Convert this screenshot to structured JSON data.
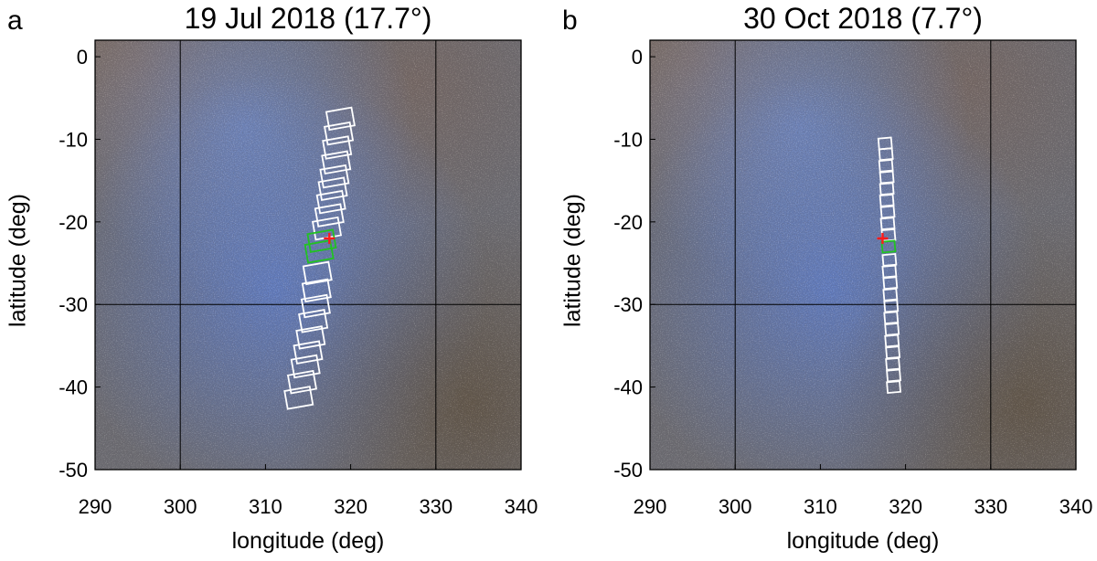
{
  "colors": {
    "footprint": "#ffffff",
    "selected_footprint": "#22c222",
    "target_marker": "#ff1a1a",
    "grid": "#000000"
  },
  "chart_data": [
    {
      "type": "scatter",
      "panel": "a",
      "title": "19 Jul 2018 (17.7°)",
      "xlabel": "longitude (deg)",
      "ylabel": "latitude (deg)",
      "xlim": [
        290,
        340
      ],
      "ylim": [
        -50,
        2
      ],
      "xticks": [
        290,
        300,
        310,
        320,
        330,
        340
      ],
      "yticks": [
        0,
        -10,
        -20,
        -30,
        -40,
        -50
      ],
      "grid_lines": {
        "x": [
          300,
          330
        ],
        "y": [
          -30
        ]
      },
      "target": {
        "lon": 317.5,
        "lat": -22
      },
      "footprint_size": {
        "width_deg": 3,
        "height_deg": 2.2,
        "tilt_deg": -10
      },
      "footprints": [
        {
          "lon": 318.8,
          "lat": -7.5
        },
        {
          "lon": 318.6,
          "lat": -9.3
        },
        {
          "lon": 318.4,
          "lat": -11
        },
        {
          "lon": 318.3,
          "lat": -12.8
        },
        {
          "lon": 318.1,
          "lat": -14.5
        },
        {
          "lon": 317.9,
          "lat": -16
        },
        {
          "lon": 317.7,
          "lat": -17.6
        },
        {
          "lon": 317.5,
          "lat": -19.2
        },
        {
          "lon": 317.2,
          "lat": -20.8
        },
        {
          "lon": 316.6,
          "lat": -22.3,
          "selected": true
        },
        {
          "lon": 316.3,
          "lat": -23.6,
          "selected": true
        },
        {
          "lon": 316.1,
          "lat": -26.2
        },
        {
          "lon": 316,
          "lat": -28.3
        },
        {
          "lon": 315.9,
          "lat": -30.2
        },
        {
          "lon": 315.6,
          "lat": -32
        },
        {
          "lon": 315.3,
          "lat": -34
        },
        {
          "lon": 315,
          "lat": -35.8
        },
        {
          "lon": 314.7,
          "lat": -37.5
        },
        {
          "lon": 314.3,
          "lat": -39.4
        },
        {
          "lon": 313.9,
          "lat": -41.3
        }
      ]
    },
    {
      "type": "scatter",
      "panel": "b",
      "title": "30 Oct 2018 (7.7°)",
      "xlabel": "longitude (deg)",
      "ylabel": "latitude (deg)",
      "xlim": [
        290,
        340
      ],
      "ylim": [
        -50,
        2
      ],
      "xticks": [
        290,
        300,
        310,
        320,
        330,
        340
      ],
      "yticks": [
        0,
        -10,
        -20,
        -30,
        -40,
        -50
      ],
      "grid_lines": {
        "x": [
          300,
          330
        ],
        "y": [
          -30
        ]
      },
      "target": {
        "lon": 317.3,
        "lat": -22
      },
      "footprint_size": {
        "width_deg": 1.5,
        "height_deg": 1.3,
        "tilt_deg": -5
      },
      "footprints": [
        {
          "lon": 317.6,
          "lat": -10.5
        },
        {
          "lon": 317.7,
          "lat": -11.8
        },
        {
          "lon": 317.7,
          "lat": -13.2
        },
        {
          "lon": 317.8,
          "lat": -14.6
        },
        {
          "lon": 317.8,
          "lat": -16
        },
        {
          "lon": 317.8,
          "lat": -17.4
        },
        {
          "lon": 317.9,
          "lat": -18.8
        },
        {
          "lon": 317.9,
          "lat": -20.2
        },
        {
          "lon": 318,
          "lat": -21.6
        },
        {
          "lon": 318,
          "lat": -23,
          "selected": true
        },
        {
          "lon": 318.1,
          "lat": -24.6
        },
        {
          "lon": 318.1,
          "lat": -26
        },
        {
          "lon": 318.2,
          "lat": -27.4
        },
        {
          "lon": 318.2,
          "lat": -28.8
        },
        {
          "lon": 318.3,
          "lat": -30.2
        },
        {
          "lon": 318.3,
          "lat": -31.6
        },
        {
          "lon": 318.4,
          "lat": -33
        },
        {
          "lon": 318.4,
          "lat": -34.4
        },
        {
          "lon": 318.5,
          "lat": -35.8
        },
        {
          "lon": 318.5,
          "lat": -37.2
        },
        {
          "lon": 318.6,
          "lat": -38.6
        },
        {
          "lon": 318.6,
          "lat": -40
        }
      ]
    }
  ]
}
